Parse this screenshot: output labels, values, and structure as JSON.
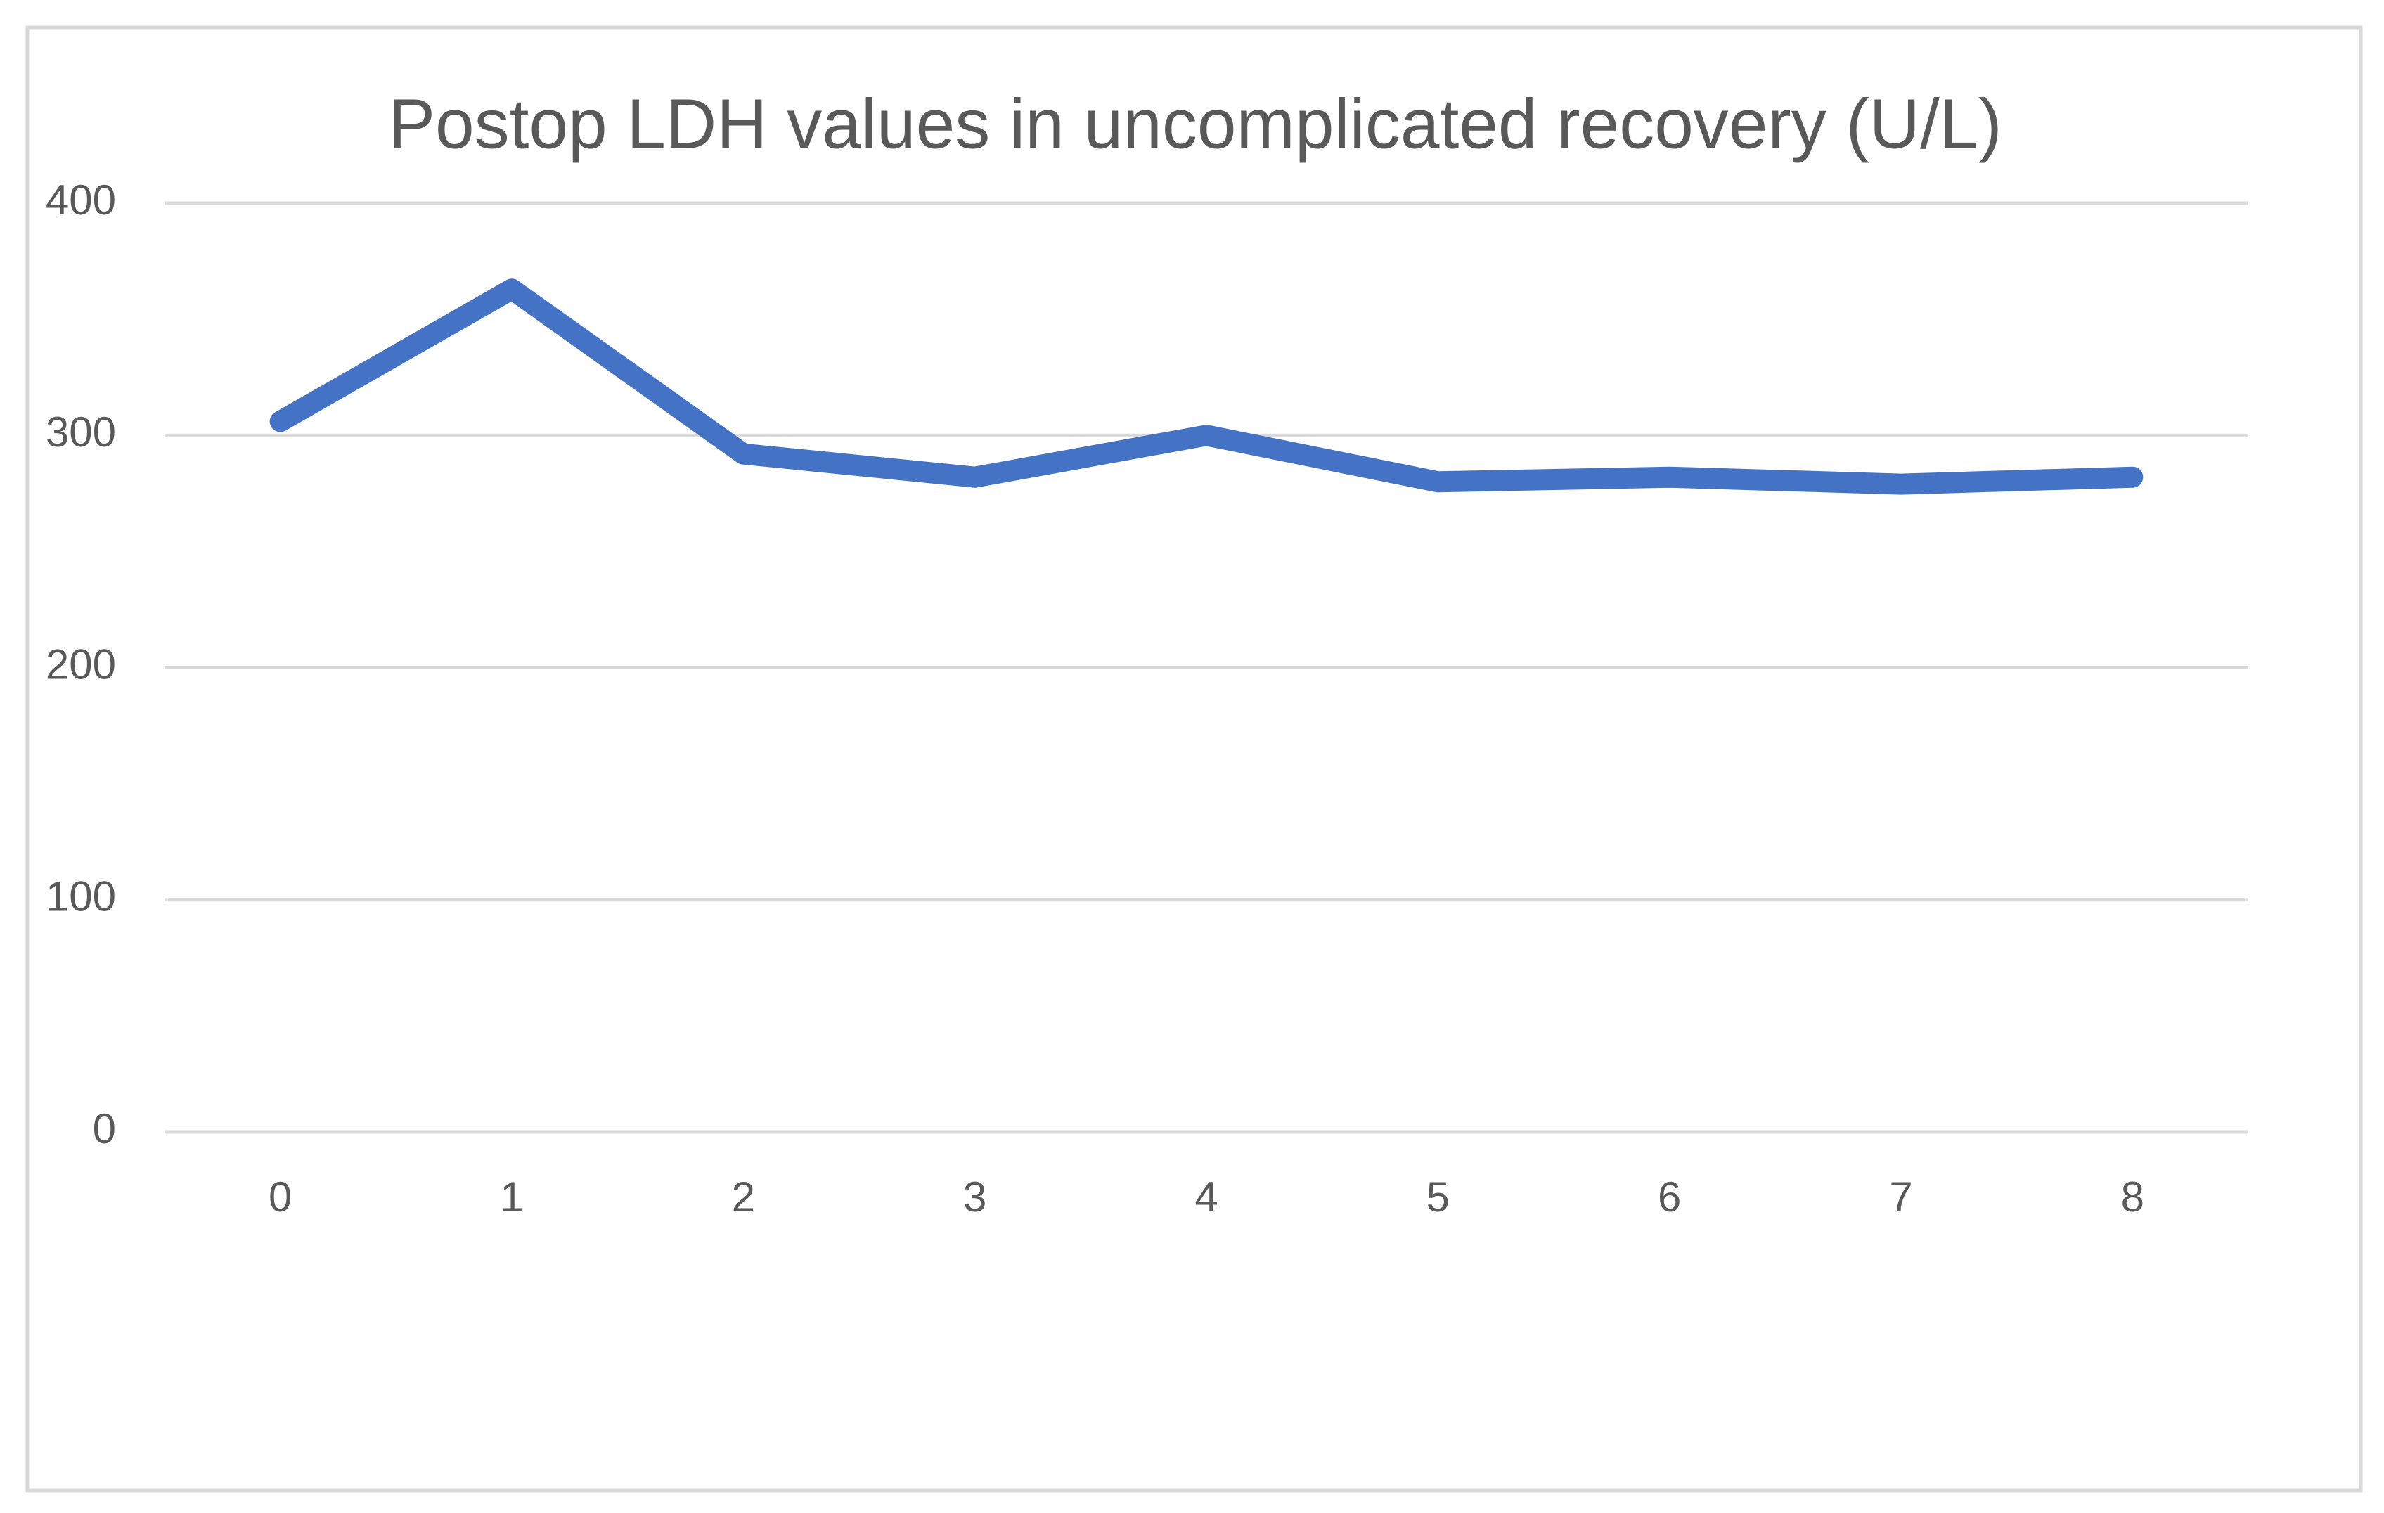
{
  "chart_data": {
    "type": "line",
    "title": "Postop LDH values in uncomplicated recovery (U/L)",
    "categories": [
      "0",
      "1",
      "2",
      "3",
      "4",
      "5",
      "6",
      "7",
      "8"
    ],
    "values": [
      306,
      363,
      292,
      282,
      300,
      280,
      282,
      279,
      282
    ],
    "color": "#4472c4",
    "ylim": [
      0,
      400
    ],
    "yticks": [
      0,
      100,
      200,
      300,
      400
    ],
    "grid": true
  }
}
